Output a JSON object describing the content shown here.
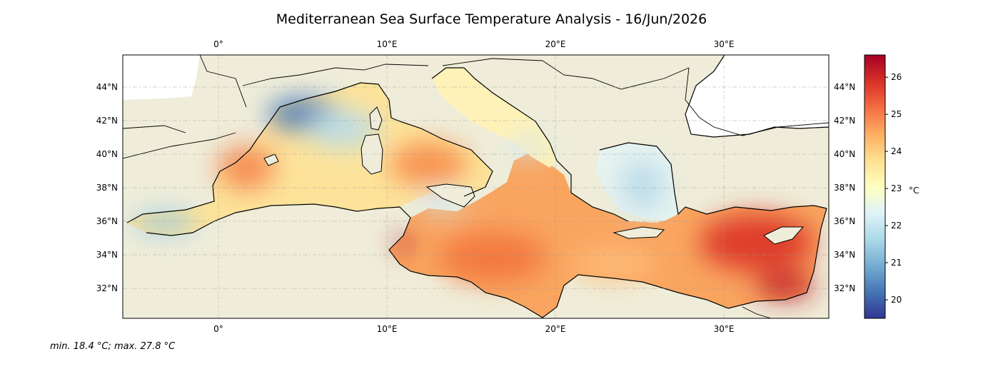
{
  "title": "Mediterranean Sea Surface Temperature Analysis - 16/Jun/2026",
  "stats_text": "min. 18.4 °C; max. 27.8 °C",
  "colorbar": {
    "unit": "°C",
    "min": 19.5,
    "max": 26.6,
    "ticks": [
      "20",
      "21",
      "22",
      "23",
      "24",
      "25",
      "26"
    ],
    "colors": [
      "#313695",
      "#4575b4",
      "#74add1",
      "#abd9e9",
      "#e0f3f8",
      "#ffffbf",
      "#fee090",
      "#fdae61",
      "#f46d43",
      "#d73027",
      "#a50026"
    ]
  },
  "map": {
    "lon_range": [
      -5.8,
      36.3
    ],
    "lat_range": [
      30.2,
      46.0
    ],
    "lon_ticks": [
      "0°",
      "10°E",
      "20°E",
      "30°E"
    ],
    "lat_ticks": [
      "32°N",
      "34°N",
      "36°N",
      "38°N",
      "40°N",
      "42°N",
      "44°N"
    ],
    "land_color": "#efedd9",
    "gridlines": true
  }
}
